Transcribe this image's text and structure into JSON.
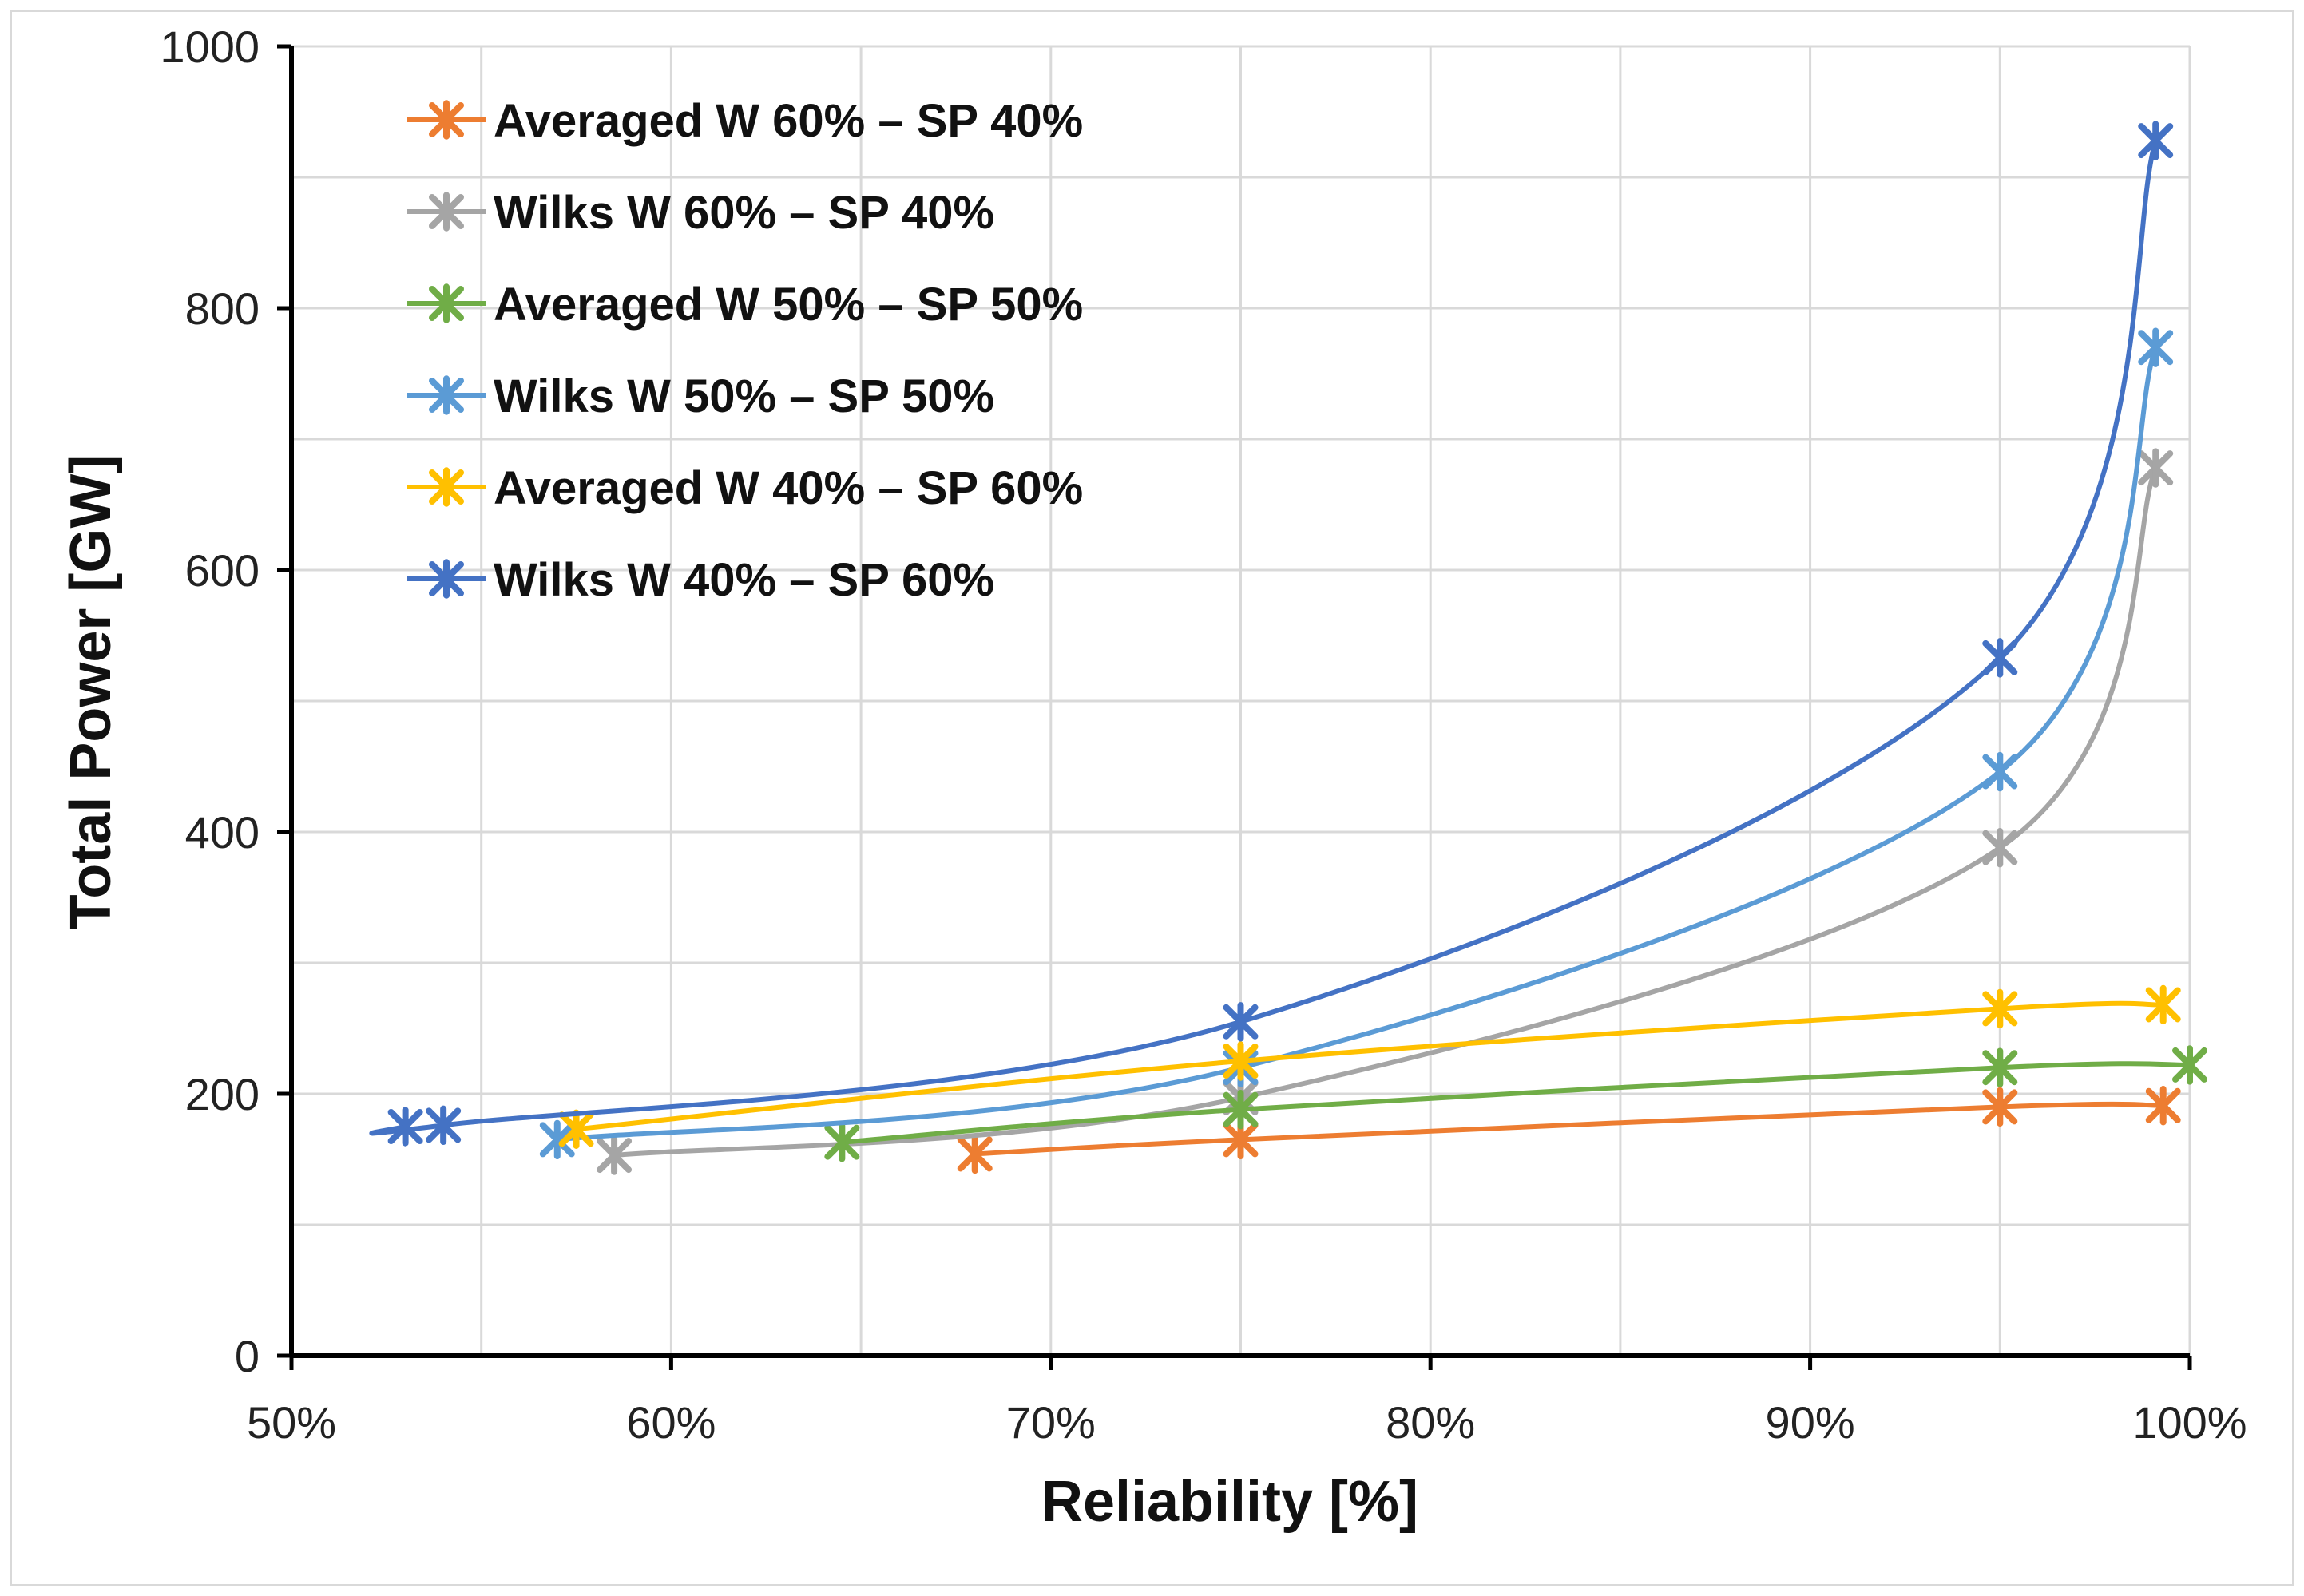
{
  "chart_data": {
    "type": "line",
    "title": "",
    "xlabel": "Reliability [%]",
    "ylabel": "Total Power [GW]",
    "xlim": [
      50,
      100
    ],
    "ylim": [
      0,
      1000
    ],
    "x_ticks": [
      "50%",
      "60%",
      "70%",
      "80%",
      "90%",
      "100%"
    ],
    "y_ticks": [
      "0",
      "200",
      "400",
      "600",
      "800",
      "1000"
    ],
    "grid": true,
    "legend_position": "top-left",
    "series": [
      {
        "name": "Averaged W 60% – SP 40%",
        "color": "#ED7D31",
        "points": [
          [
            68,
            154
          ],
          [
            75,
            165
          ],
          [
            95,
            190
          ],
          [
            99.3,
            191
          ]
        ]
      },
      {
        "name": "Wilks W 60% – SP 40%",
        "color": "#A5A5A5",
        "points": [
          [
            58.5,
            153
          ],
          [
            75,
            197
          ],
          [
            95,
            388
          ],
          [
            99.1,
            678
          ]
        ]
      },
      {
        "name": "Averaged W 50% – SP 50%",
        "color": "#70AD47",
        "points": [
          [
            64.5,
            163
          ],
          [
            75,
            188
          ],
          [
            95,
            220
          ],
          [
            100,
            222
          ]
        ]
      },
      {
        "name": "Wilks W 50% – SP 50%",
        "color": "#5B9BD5",
        "points": [
          [
            57,
            165
          ],
          [
            75,
            220
          ],
          [
            95,
            446
          ],
          [
            99.1,
            770
          ]
        ]
      },
      {
        "name": "Averaged W 40% – SP 60%",
        "color": "#FFC000",
        "points": [
          [
            57.5,
            173
          ],
          [
            75,
            225
          ],
          [
            95,
            265
          ],
          [
            99.3,
            268
          ]
        ]
      },
      {
        "name": "Wilks W 40% – SP 60%",
        "color": "#4472C4",
        "points": [
          [
            53,
            175
          ],
          [
            54,
            176
          ],
          [
            75,
            255
          ],
          [
            95,
            533
          ],
          [
            99.1,
            928
          ]
        ]
      }
    ]
  }
}
